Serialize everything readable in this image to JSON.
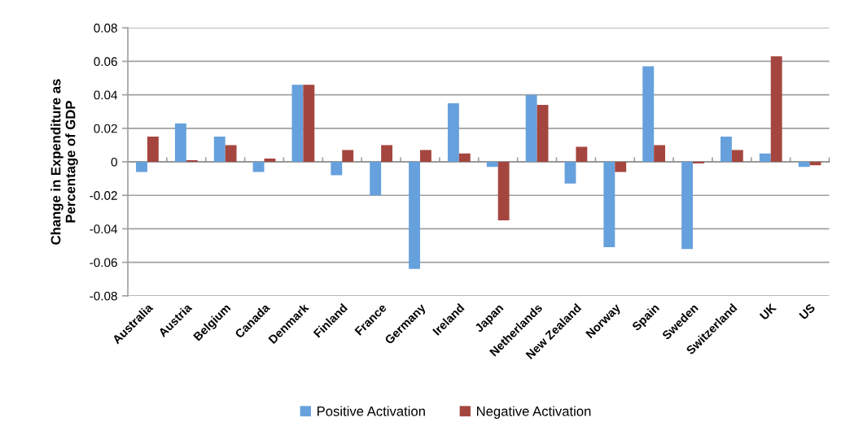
{
  "chart_data": {
    "type": "bar",
    "ylabel": "Change in Expenditure as\nPercentage of GDP",
    "categories": [
      "Australia",
      "Austria",
      "Belgium",
      "Canada",
      "Denmark",
      "Finland",
      "France",
      "Germany",
      "Ireland",
      "Japan",
      "Netherlands",
      "New Zealand",
      "Norway",
      "Spain",
      "Sweden",
      "Switzerland",
      "UK",
      "US"
    ],
    "series": [
      {
        "name": "Positive Activation",
        "color": "#66a1dd",
        "values": [
          -0.006,
          0.023,
          0.015,
          -0.006,
          0.046,
          -0.008,
          -0.02,
          -0.064,
          0.035,
          -0.003,
          0.04,
          -0.013,
          -0.051,
          0.057,
          -0.052,
          0.015,
          0.005,
          -0.003
        ]
      },
      {
        "name": "Negative Activation",
        "color": "#a4463f",
        "values": [
          0.015,
          0.001,
          0.01,
          0.002,
          0.046,
          0.007,
          0.01,
          0.007,
          0.005,
          -0.035,
          0.034,
          0.009,
          -0.006,
          0.01,
          -0.001,
          0.007,
          0.063,
          -0.002
        ]
      }
    ],
    "ylim": [
      -0.08,
      0.08
    ],
    "yticks": [
      -0.08,
      -0.06,
      -0.04,
      -0.02,
      0,
      0.02,
      0.04,
      0.06,
      0.08
    ],
    "grid": "y",
    "legend": "bottom"
  }
}
